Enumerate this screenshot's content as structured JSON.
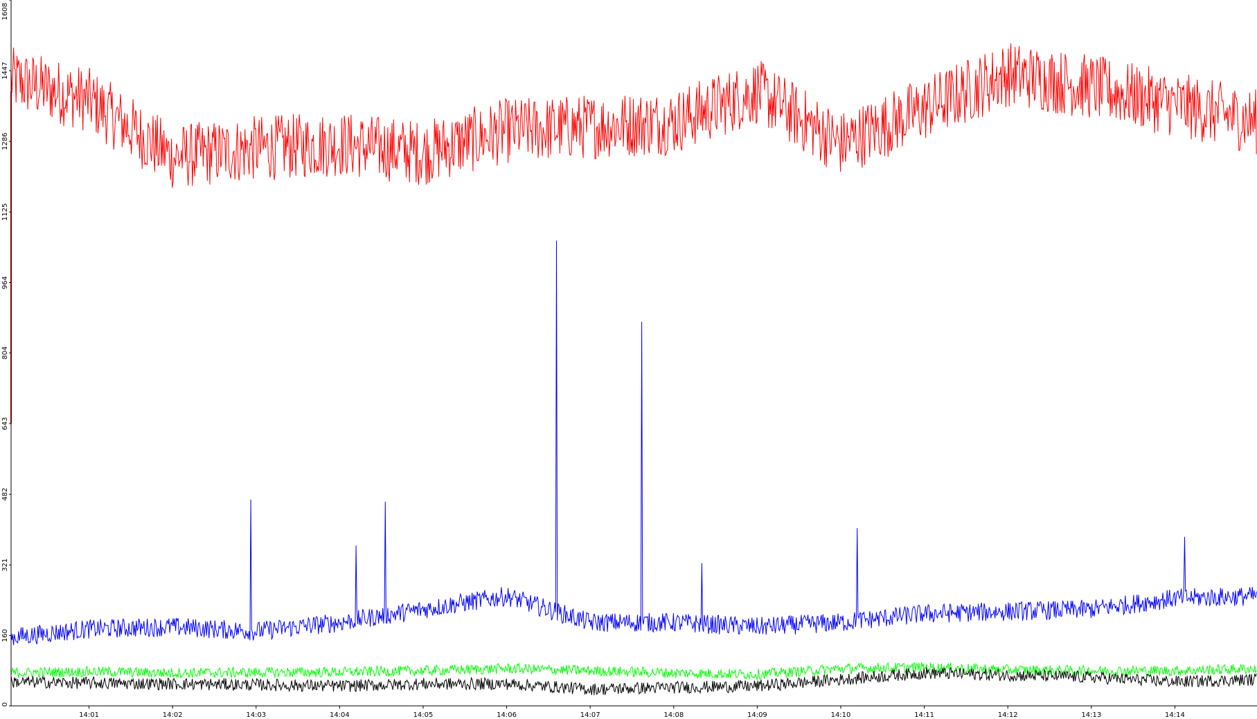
{
  "chart_data": {
    "type": "line",
    "title": "",
    "xlabel": "",
    "ylabel": "",
    "grid": false,
    "legend": "none",
    "ylim": [
      0,
      1608
    ],
    "y_ticks": [
      "0",
      "160",
      "321",
      "482",
      "643",
      "804",
      "964",
      "1125",
      "1286",
      "1447",
      "1608"
    ],
    "x_tick_labels": [
      "14:01",
      "14:02",
      "14:03",
      "14:04",
      "14:05",
      "14:06",
      "14:07",
      "14:08",
      "14:09",
      "14:10",
      "14:11",
      "14:12",
      "14:13",
      "14:14"
    ],
    "x_range": [
      "14:00:04",
      "14:14:59"
    ],
    "series": [
      {
        "color": "#ff0000",
        "x": [
          "14:00",
          "14:01",
          "14:02",
          "14:03",
          "14:04",
          "14:05",
          "14:06",
          "14:07",
          "14:08",
          "14:09",
          "14:10",
          "14:11",
          "14:12",
          "14:13",
          "14:14",
          "14:15"
        ],
        "values": [
          1430,
          1380,
          1250,
          1270,
          1280,
          1260,
          1310,
          1320,
          1330,
          1400,
          1280,
          1360,
          1440,
          1410,
          1370,
          1330
        ]
      },
      {
        "color": "#0000ff",
        "x": [
          "14:00",
          "14:01",
          "14:02",
          "14:03",
          "14:04",
          "14:05",
          "14:06",
          "14:07",
          "14:08",
          "14:09",
          "14:10",
          "14:11",
          "14:12",
          "14:13",
          "14:14",
          "14:15"
        ],
        "values": [
          155,
          175,
          180,
          170,
          190,
          220,
          250,
          190,
          190,
          180,
          190,
          210,
          215,
          220,
          245,
          250
        ],
        "spikes": [
          {
            "x": "14:02:56",
            "value": 470
          },
          {
            "x": "14:04:12",
            "value": 365
          },
          {
            "x": "14:04:33",
            "value": 465
          },
          {
            "x": "14:06:36",
            "value": 1060
          },
          {
            "x": "14:07:37",
            "value": 875
          },
          {
            "x": "14:08:20",
            "value": 325
          },
          {
            "x": "14:10:12",
            "value": 405
          },
          {
            "x": "14:14:07",
            "value": 385
          }
        ]
      },
      {
        "color": "#00ff00",
        "x": [
          "14:00",
          "14:01",
          "14:02",
          "14:03",
          "14:04",
          "14:05",
          "14:06",
          "14:07",
          "14:08",
          "14:09",
          "14:10",
          "14:11",
          "14:12",
          "14:13",
          "14:14",
          "14:15"
        ],
        "values": [
          75,
          78,
          75,
          76,
          77,
          80,
          85,
          80,
          75,
          72,
          85,
          88,
          82,
          80,
          80,
          85
        ]
      },
      {
        "color": "#000000",
        "x": [
          "14:00",
          "14:01",
          "14:02",
          "14:03",
          "14:04",
          "14:05",
          "14:06",
          "14:07",
          "14:08",
          "14:09",
          "14:10",
          "14:11",
          "14:12",
          "14:13",
          "14:14",
          "14:15"
        ],
        "values": [
          55,
          52,
          50,
          48,
          45,
          50,
          50,
          38,
          42,
          45,
          60,
          75,
          70,
          65,
          55,
          60
        ]
      }
    ]
  }
}
